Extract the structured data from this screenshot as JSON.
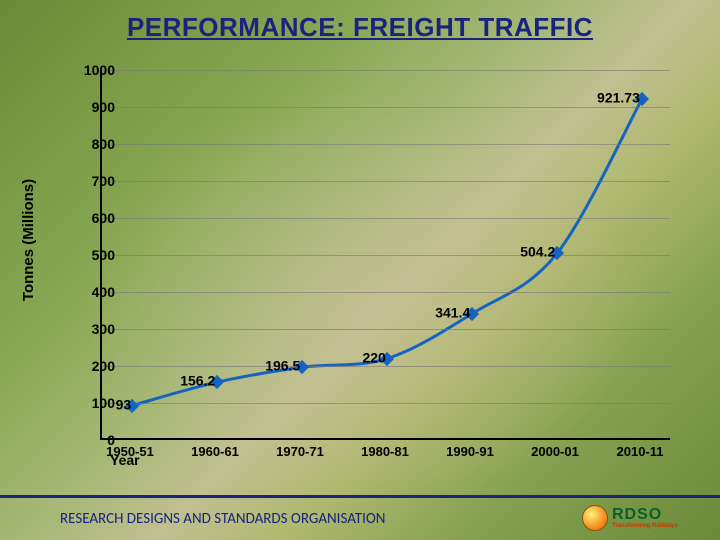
{
  "title": "PERFORMANCE: FREIGHT TRAFFIC",
  "footer": "RESEARCH DESIGNS AND STANDARDS ORGANISATION",
  "logo": {
    "main": "RDSO",
    "sub": "Transforming Railways"
  },
  "chart": {
    "type": "line",
    "ylabel": "Tonnes (Millions)",
    "xlabel": "Year",
    "ylim": [
      0,
      1000
    ],
    "ytick_step": 100,
    "categories": [
      "1950-51",
      "1960-61",
      "1970-71",
      "1980-81",
      "1990-91",
      "2000-01",
      "2010-11"
    ],
    "values": [
      93,
      156.2,
      196.5,
      220,
      341.4,
      504.2,
      921.73
    ],
    "line_color": "#1565c0",
    "line_width": 3,
    "marker_color": "#1565c0",
    "marker_size": 10,
    "grid_color": "rgba(120,120,120,0.6)",
    "title_color": "#1a237e",
    "title_fontsize": 26,
    "axis_fontsize": 14,
    "label_fontsize": 15,
    "datalabel_fontsize": 14
  }
}
